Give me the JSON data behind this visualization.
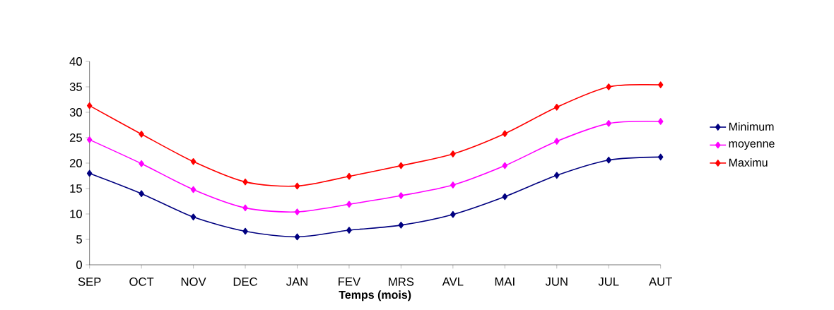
{
  "chart_data": {
    "type": "line",
    "xlabel": "Temps (mois)",
    "categories": [
      "SEP",
      "OCT",
      "NOV",
      "DEC",
      "JAN",
      "FEV",
      "MRS",
      "AVL",
      "MAI",
      "JUN",
      "JUL",
      "AUT"
    ],
    "series": [
      {
        "name": "Minimum",
        "color": "#000080",
        "values": [
          18.0,
          14.0,
          9.4,
          6.6,
          5.5,
          6.8,
          7.8,
          9.9,
          13.4,
          17.6,
          20.6,
          21.2
        ]
      },
      {
        "name": "moyenne",
        "color": "#ff00ff",
        "values": [
          24.6,
          19.9,
          14.8,
          11.2,
          10.4,
          11.9,
          13.6,
          15.7,
          19.5,
          24.3,
          27.8,
          28.2
        ]
      },
      {
        "name": "Maximu",
        "color": "#ff0000",
        "values": [
          31.3,
          25.7,
          20.3,
          16.3,
          15.5,
          17.4,
          19.5,
          21.8,
          25.8,
          31.0,
          35.0,
          35.4
        ]
      }
    ],
    "ylim": [
      0,
      40
    ],
    "yticks": [
      0,
      5,
      10,
      15,
      20,
      25,
      30,
      35,
      40
    ],
    "grid": false,
    "legend": "right",
    "marker": "diamond",
    "line_style": "solid"
  }
}
